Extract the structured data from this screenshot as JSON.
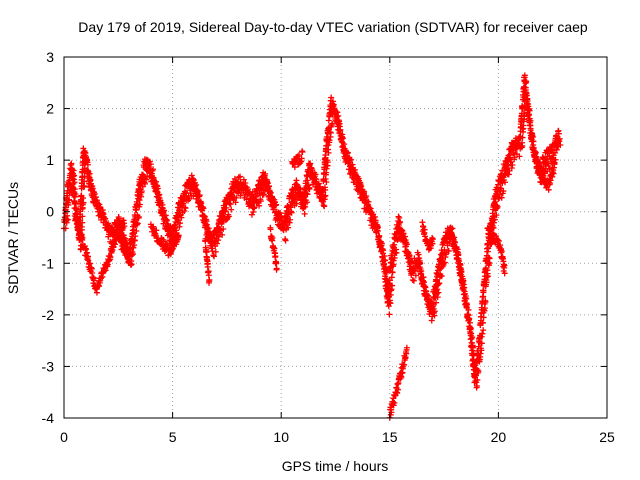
{
  "chart_data": {
    "type": "scatter",
    "title": "Day 179 of 2019, Sidereal Day-to-day VTEC variation (SDTVAR) for receiver caep",
    "xlabel": "GPS time / hours",
    "ylabel": "SDTVAR / TECUs",
    "xlim": [
      0,
      25
    ],
    "ylim": [
      -4,
      3
    ],
    "xticks": [
      0,
      5,
      10,
      15,
      20,
      25
    ],
    "yticks": [
      -4,
      -3,
      -2,
      -1,
      0,
      1,
      2,
      3
    ],
    "grid": true,
    "marker": "+",
    "series": [
      {
        "name": "SDTVAR",
        "color": "#ff0000",
        "anchors": [
          [
            0.0,
            -0.2
          ],
          [
            0.2,
            0.5
          ],
          [
            0.35,
            0.9
          ],
          [
            0.5,
            0.1
          ],
          [
            0.7,
            -0.5
          ],
          [
            0.9,
            1.2
          ],
          [
            1.1,
            0.8
          ],
          [
            1.3,
            0.4
          ],
          [
            1.6,
            0.1
          ],
          [
            1.9,
            -0.2
          ],
          [
            2.2,
            -0.4
          ],
          [
            2.5,
            -0.2
          ],
          [
            2.8,
            -0.6
          ],
          [
            3.0,
            -0.9
          ],
          [
            3.2,
            -0.3
          ],
          [
            3.5,
            0.6
          ],
          [
            3.8,
            1.0
          ],
          [
            4.1,
            0.7
          ],
          [
            4.4,
            0.2
          ],
          [
            4.7,
            -0.2
          ],
          [
            5.0,
            -0.5
          ],
          [
            5.3,
            0.1
          ],
          [
            5.6,
            0.4
          ],
          [
            5.9,
            0.6
          ],
          [
            6.2,
            0.3
          ],
          [
            6.5,
            -0.2
          ],
          [
            6.8,
            -0.6
          ],
          [
            7.1,
            -0.3
          ],
          [
            7.4,
            0.1
          ],
          [
            7.7,
            0.4
          ],
          [
            8.0,
            0.6
          ],
          [
            8.3,
            0.5
          ],
          [
            8.6,
            0.2
          ],
          [
            8.9,
            0.4
          ],
          [
            9.2,
            0.7
          ],
          [
            9.5,
            0.3
          ],
          [
            9.8,
            0.0
          ],
          [
            10.1,
            -0.3
          ],
          [
            10.4,
            0.2
          ],
          [
            10.7,
            0.5
          ],
          [
            11.0,
            0.2
          ],
          [
            11.3,
            0.9
          ],
          [
            11.6,
            0.6
          ],
          [
            11.9,
            0.3
          ],
          [
            12.1,
            1.4
          ],
          [
            12.3,
            2.1
          ],
          [
            12.6,
            1.8
          ],
          [
            12.9,
            1.2
          ],
          [
            13.2,
            0.9
          ],
          [
            13.5,
            0.6
          ],
          [
            13.8,
            0.3
          ],
          [
            14.1,
            0.0
          ],
          [
            14.4,
            -0.3
          ],
          [
            14.7,
            -0.9
          ],
          [
            14.9,
            -1.7
          ],
          [
            15.1,
            -0.8
          ],
          [
            15.4,
            -0.2
          ],
          [
            15.7,
            -0.6
          ],
          [
            16.0,
            -1.1
          ],
          [
            16.3,
            -0.9
          ],
          [
            16.6,
            -1.5
          ],
          [
            16.9,
            -1.9
          ],
          [
            17.2,
            -1.2
          ],
          [
            17.5,
            -0.6
          ],
          [
            17.8,
            -0.3
          ],
          [
            18.1,
            -0.8
          ],
          [
            18.4,
            -1.5
          ],
          [
            18.7,
            -2.3
          ],
          [
            18.9,
            -3.2
          ],
          [
            19.1,
            -2.6
          ],
          [
            19.3,
            -1.6
          ],
          [
            19.5,
            -0.7
          ],
          [
            19.7,
            -0.1
          ],
          [
            19.9,
            0.4
          ],
          [
            20.1,
            0.6
          ],
          [
            20.4,
            1.0
          ],
          [
            20.7,
            1.3
          ],
          [
            21.0,
            1.4
          ],
          [
            21.2,
            2.6
          ],
          [
            21.4,
            1.8
          ],
          [
            21.6,
            1.2
          ],
          [
            21.9,
            0.8
          ],
          [
            22.2,
            1.1
          ],
          [
            22.5,
            1.2
          ],
          [
            22.8,
            1.5
          ]
        ],
        "extra_segments": [
          [
            [
              0.5,
              -0.1
            ],
            [
              1.0,
              -0.8
            ],
            [
              1.5,
              -1.5
            ],
            [
              2.0,
              -1.0
            ],
            [
              2.4,
              -0.5
            ],
            [
              2.8,
              -0.2
            ]
          ],
          [
            [
              2.5,
              -0.5
            ],
            [
              2.8,
              -0.8
            ],
            [
              3.0,
              -0.9
            ]
          ],
          [
            [
              4.0,
              -0.3
            ],
            [
              4.5,
              -0.6
            ],
            [
              4.9,
              -0.8
            ],
            [
              5.3,
              -0.4
            ]
          ],
          [
            [
              6.5,
              -0.5
            ],
            [
              6.6,
              -1.0
            ],
            [
              6.7,
              -1.4
            ]
          ],
          [
            [
              9.5,
              -0.4
            ],
            [
              9.7,
              -0.8
            ],
            [
              9.8,
              -1.2
            ]
          ],
          [
            [
              10.5,
              0.9
            ],
            [
              10.8,
              1.0
            ],
            [
              11.0,
              1.1
            ]
          ],
          [
            [
              15.0,
              -3.9
            ],
            [
              15.3,
              -3.5
            ],
            [
              15.6,
              -3.0
            ],
            [
              15.8,
              -2.7
            ]
          ],
          [
            [
              16.5,
              -0.3
            ],
            [
              16.8,
              -0.7
            ],
            [
              17.0,
              -0.5
            ]
          ],
          [
            [
              19.5,
              -0.3
            ],
            [
              19.8,
              -0.5
            ],
            [
              20.1,
              -0.7
            ],
            [
              20.3,
              -1.2
            ]
          ],
          [
            [
              21.7,
              1.0
            ],
            [
              22.0,
              0.7
            ],
            [
              22.3,
              0.5
            ],
            [
              22.6,
              0.9
            ]
          ]
        ]
      }
    ]
  }
}
